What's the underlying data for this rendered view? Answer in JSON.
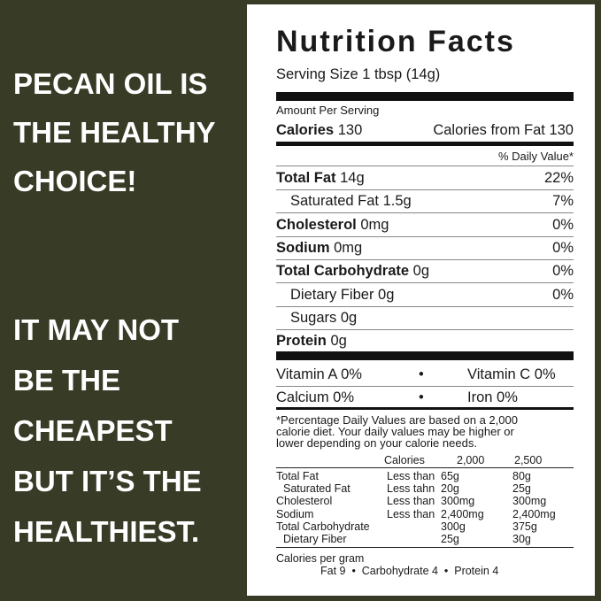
{
  "left_text": {
    "headline": [
      "PECAN OIL IS",
      "THE HEALTHY",
      "CHOICE!"
    ],
    "tagline": [
      "IT MAY NOT",
      "BE THE",
      "CHEAPEST",
      "BUT IT’S THE",
      "HEALTHIEST."
    ]
  },
  "label": {
    "title": "Nutrition Facts",
    "serving_size": "Serving Size 1 tbsp (14g)",
    "amount_per_serving": "Amount Per Serving",
    "calories_label": "Calories",
    "calories_value": "130",
    "calories_from_fat": "Calories from Fat 130",
    "daily_value_header": "% Daily Value*",
    "nutrients": [
      {
        "name": "Total Fat",
        "amount": "14g",
        "dv": "22%"
      },
      {
        "name": "Saturated Fat",
        "amount": "1.5g",
        "dv": "7%"
      },
      {
        "name": "Cholesterol",
        "amount": "0mg",
        "dv": "0%"
      },
      {
        "name": "Sodium",
        "amount": "0mg",
        "dv": "0%"
      },
      {
        "name": "Total Carbohydrate",
        "amount": "0g",
        "dv": "0%"
      },
      {
        "name": "Dietary Fiber",
        "amount": "0g",
        "dv": "0%"
      },
      {
        "name": "Sugars",
        "amount": "0g"
      },
      {
        "name": "Protein",
        "amount": "0g"
      }
    ],
    "vitamins": [
      {
        "left": "Vitamin A 0%",
        "right": "Vitamin C 0%"
      },
      {
        "left": "Calcium 0%",
        "right": "Iron 0%"
      }
    ],
    "footnote": [
      "*Percentage Daily Values are based on a 2,000",
      "calorie diet.  Your daily values may be higher or",
      "lower depending on your calorie needs."
    ],
    "table_header": [
      "Calories",
      "2,000",
      "2,500"
    ],
    "table_rows": [
      {
        "name": "Total Fat",
        "qualifier": "Less than",
        "v2000": "65g",
        "v2500": "80g"
      },
      {
        "name": "Saturated Fat",
        "qualifier": "Less tahn",
        "v2000": "20g",
        "v2500": "25g"
      },
      {
        "name": "Cholesterol",
        "qualifier": "Less than",
        "v2000": "300mg",
        "v2500": "300mg"
      },
      {
        "name": "Sodium",
        "qualifier": "Less than",
        "v2000": "2,400mg",
        "v2500": "2,400mg"
      },
      {
        "name": "Total Carbohydrate",
        "v2000": "300g",
        "v2500": "375g"
      },
      {
        "name": "Dietary Fiber",
        "v2000": "25g",
        "v2500": "30g"
      }
    ],
    "calories_per_gram": "Calories per gram",
    "per_gram_items": [
      "Fat 9",
      "Carbohydrate 4",
      "Protein 4"
    ]
  }
}
